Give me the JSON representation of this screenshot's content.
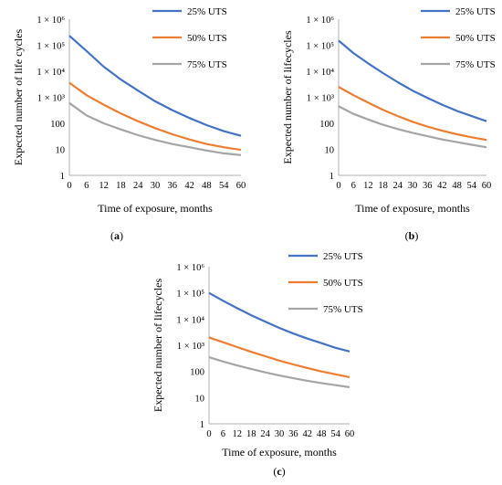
{
  "chart_data": [
    {
      "type": "line",
      "panel_label": "(a)",
      "xlabel": "Time of exposure, months",
      "ylabel": "Expected number of life cycles",
      "y_scale": "log",
      "ylim": [
        1,
        1000000
      ],
      "y_ticks": [
        "1",
        "10",
        "100",
        "1 × 10³",
        "1 × 10⁴",
        "1 × 10⁵",
        "1 × 10⁶"
      ],
      "xlim": [
        0,
        60
      ],
      "x_ticks": [
        0,
        6,
        12,
        18,
        24,
        30,
        36,
        42,
        48,
        54,
        60
      ],
      "legend_placement": "top-right",
      "grid": false,
      "x": [
        0,
        6,
        12,
        18,
        24,
        30,
        36,
        42,
        48,
        54,
        60
      ],
      "series": [
        {
          "name": "25% UTS",
          "color": "#4472C4",
          "values": [
            230000,
            60000,
            15000,
            4800,
            1800,
            700,
            320,
            160,
            85,
            50,
            33
          ]
        },
        {
          "name": "50% UTS",
          "color": "#ED7D31",
          "values": [
            3600,
            1200,
            520,
            240,
            120,
            65,
            38,
            24,
            16,
            12,
            9.5
          ]
        },
        {
          "name": "75% UTS",
          "color": "#A5A5A5",
          "values": [
            600,
            200,
            100,
            58,
            35,
            23,
            16,
            12,
            9,
            7,
            6
          ]
        }
      ]
    },
    {
      "type": "line",
      "panel_label": "(b)",
      "xlabel": "Time of exposure, months",
      "ylabel": "Expected number of lifecycles",
      "y_scale": "log",
      "ylim": [
        1,
        1000000
      ],
      "y_ticks": [
        "1",
        "10",
        "100",
        "1 × 10³",
        "1 × 10⁴",
        "1 × 10⁵",
        "1 × 10⁶"
      ],
      "xlim": [
        0,
        60
      ],
      "x_ticks": [
        0,
        6,
        12,
        18,
        24,
        30,
        36,
        42,
        48,
        54,
        60
      ],
      "legend_placement": "top-right",
      "grid": false,
      "x": [
        0,
        6,
        12,
        18,
        24,
        30,
        36,
        42,
        48,
        54,
        60
      ],
      "series": [
        {
          "name": "25% UTS",
          "color": "#4472C4",
          "values": [
            150000,
            50000,
            20000,
            8500,
            3800,
            1800,
            950,
            520,
            300,
            190,
            120
          ]
        },
        {
          "name": "50% UTS",
          "color": "#ED7D31",
          "values": [
            2500,
            1200,
            620,
            330,
            190,
            115,
            75,
            52,
            38,
            29,
            23
          ]
        },
        {
          "name": "75% UTS",
          "color": "#A5A5A5",
          "values": [
            450,
            230,
            140,
            88,
            60,
            43,
            32,
            24,
            19,
            15,
            12
          ]
        }
      ]
    },
    {
      "type": "line",
      "panel_label": "(c)",
      "xlabel": "Time of exposure, months",
      "ylabel": "Expected number of lifecycles",
      "y_scale": "log",
      "ylim": [
        1,
        1000000
      ],
      "y_ticks": [
        "1",
        "10",
        "100",
        "1 × 10³",
        "1 × 10⁴",
        "1 × 10⁵",
        "1 × 10⁶"
      ],
      "xlim": [
        0,
        60
      ],
      "x_ticks": [
        0,
        6,
        12,
        18,
        24,
        30,
        36,
        42,
        48,
        54,
        60
      ],
      "legend_placement": "top-right",
      "grid": false,
      "x": [
        0,
        6,
        12,
        18,
        24,
        30,
        36,
        42,
        48,
        54,
        60
      ],
      "series": [
        {
          "name": "25% UTS",
          "color": "#4472C4",
          "values": [
            100000,
            50000,
            26000,
            14000,
            8000,
            4600,
            2800,
            1800,
            1200,
            800,
            580
          ]
        },
        {
          "name": "50% UTS",
          "color": "#ED7D31",
          "values": [
            2000,
            1300,
            850,
            560,
            380,
            260,
            185,
            135,
            100,
            78,
            60
          ]
        },
        {
          "name": "75% UTS",
          "color": "#A5A5A5",
          "values": [
            350,
            240,
            170,
            125,
            92,
            70,
            55,
            44,
            36,
            30,
            25
          ]
        }
      ]
    }
  ]
}
